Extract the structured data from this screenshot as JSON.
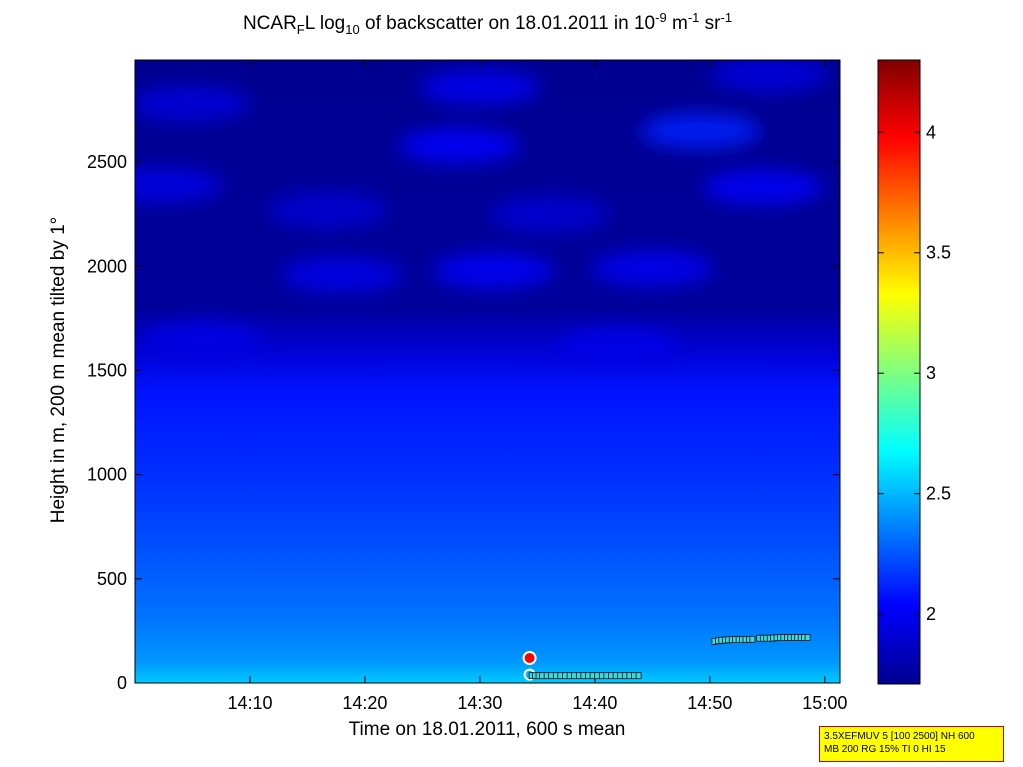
{
  "title": {
    "p1": "NCAR",
    "sub1": "F",
    "p2": "L log",
    "sub2": "10",
    "p3": " of backscatter on 18.01.2011 in 10",
    "sup1": "-9",
    "p4": " m",
    "sup2": "-1",
    "p5": " sr",
    "sup3": "-1"
  },
  "settings_box": {
    "line1": "3.5XEFMUV 5 [100 2500] NH 600",
    "line2": "MB 200 RG 15% TI 0 HI 15"
  },
  "chart_data": {
    "type": "heatmap",
    "xlabel": "Time on 18.01.2011, 600 s mean",
    "ylabel": "Height in m, 200 m mean tilted by 1°",
    "x_ticks": [
      "14:10",
      "14:20",
      "14:30",
      "14:40",
      "14:50",
      "15:00"
    ],
    "x_tick_values": [
      14.1667,
      14.3333,
      14.5,
      14.6667,
      14.8333,
      15.0
    ],
    "xlim": [
      14.0,
      15.022
    ],
    "y_ticks": [
      0,
      500,
      1000,
      1500,
      2000,
      2500
    ],
    "ylim": [
      0,
      2990
    ],
    "colorbar": {
      "ticks": [
        2,
        2.5,
        3,
        3.5,
        4
      ],
      "range": [
        1.71,
        4.3
      ],
      "colormap": "jet"
    },
    "field_profile": [
      {
        "height": 0,
        "value": 2.55
      },
      {
        "height": 100,
        "value": 2.42
      },
      {
        "height": 300,
        "value": 2.33
      },
      {
        "height": 600,
        "value": 2.25
      },
      {
        "height": 1000,
        "value": 2.15
      },
      {
        "height": 1400,
        "value": 2.08
      },
      {
        "height": 1600,
        "value": 1.92
      },
      {
        "height": 1800,
        "value": 1.78
      },
      {
        "height": 2990,
        "value": 1.75
      }
    ],
    "patches": [
      {
        "time": 14.52,
        "height": 1980,
        "value": 2.02
      },
      {
        "time": 14.3,
        "height": 1960,
        "value": 1.98
      },
      {
        "time": 14.75,
        "height": 1990,
        "value": 2.0
      },
      {
        "time": 14.1,
        "height": 1650,
        "value": 1.97
      },
      {
        "time": 14.7,
        "height": 1620,
        "value": 1.98
      },
      {
        "time": 14.47,
        "height": 2580,
        "value": 2.05
      },
      {
        "time": 14.82,
        "height": 2650,
        "value": 2.12
      },
      {
        "time": 14.91,
        "height": 2380,
        "value": 2.02
      },
      {
        "time": 14.04,
        "height": 2390,
        "value": 1.97
      },
      {
        "time": 14.5,
        "height": 2860,
        "value": 2.0
      },
      {
        "time": 14.08,
        "height": 2780,
        "value": 1.95
      },
      {
        "time": 14.92,
        "height": 2920,
        "value": 1.95
      },
      {
        "time": 14.28,
        "height": 2270,
        "value": 1.93
      },
      {
        "time": 14.6,
        "height": 2250,
        "value": 1.93
      }
    ],
    "cloud_base_markers": [
      {
        "time": 14.572,
        "height": 120
      },
      {
        "time": 14.572,
        "height": 40
      }
    ],
    "cloud_base_series": [
      {
        "segment": 1,
        "x": [
          14.575,
          14.59,
          14.61,
          14.63,
          14.65,
          14.67,
          14.69,
          14.71,
          14.73
        ],
        "y": [
          35,
          35,
          35,
          35,
          35,
          35,
          35,
          35,
          35
        ]
      },
      {
        "segment": 2,
        "x": [
          14.84,
          14.85,
          14.865,
          14.88,
          14.895
        ],
        "y": [
          200,
          205,
          208,
          208,
          210
        ]
      },
      {
        "segment": 3,
        "x": [
          14.905,
          14.92,
          14.935,
          14.95,
          14.965,
          14.975
        ],
        "y": [
          215,
          215,
          218,
          218,
          218,
          218
        ]
      }
    ]
  }
}
